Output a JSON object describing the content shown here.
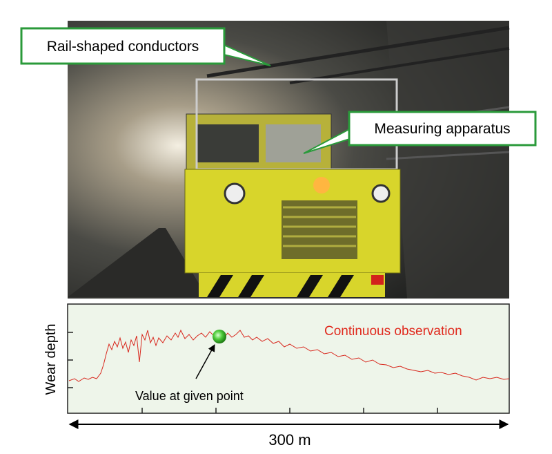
{
  "photo": {
    "callouts": [
      {
        "label": "Rail-shaped conductors"
      },
      {
        "label": "Measuring apparatus"
      }
    ]
  },
  "chart": {
    "y_axis_label": "Wear depth",
    "series_label": "Continuous observation",
    "point_label": "Value at given point",
    "span_label": "300 m"
  }
}
